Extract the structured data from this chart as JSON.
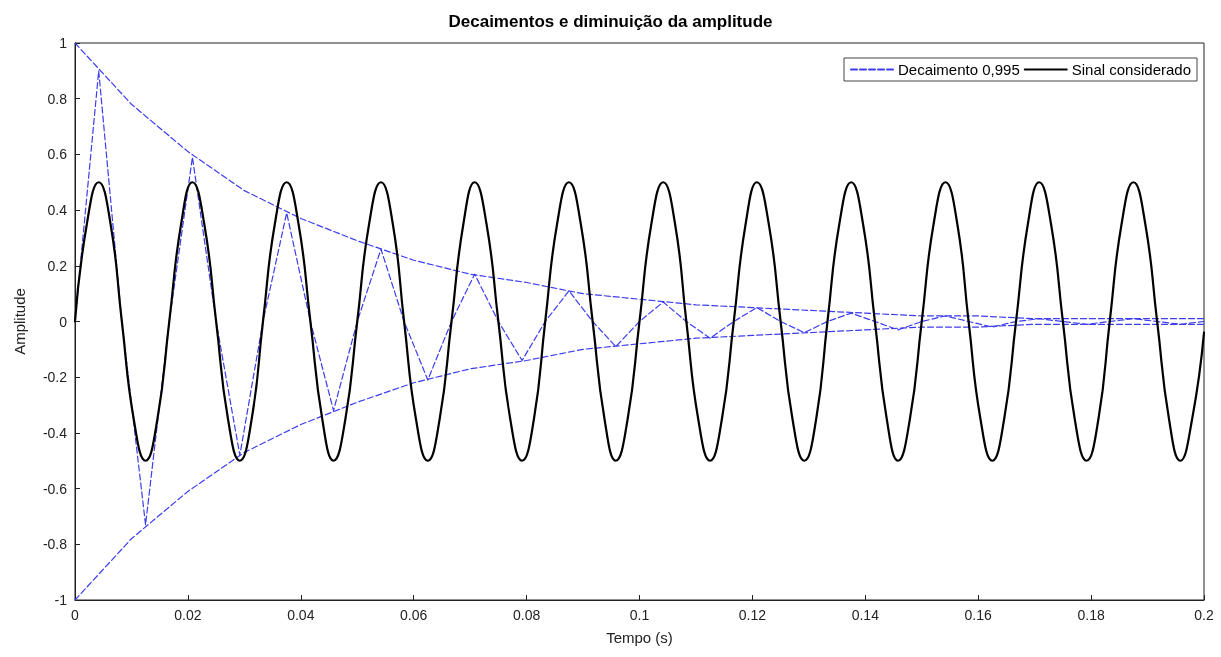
{
  "chart_data": {
    "type": "line",
    "title": "Decaimentos e diminuição da amplitude",
    "xlabel": "Tempo (s)",
    "ylabel": "Amplitude",
    "xlim": [
      0,
      0.2
    ],
    "xticks": [
      0,
      0.02,
      0.04,
      0.06,
      0.08,
      0.1,
      0.12,
      0.14,
      0.16,
      0.18,
      0.2
    ],
    "ylim": [
      -1,
      1
    ],
    "yticks": [
      -1,
      -0.8,
      -0.6,
      -0.4,
      -0.2,
      0,
      0.2,
      0.4,
      0.6,
      0.8,
      1
    ],
    "grid": false,
    "legend": "top right",
    "marker": "none",
    "series": [
      {
        "name": "Decaimento 0,995",
        "color": "#3c3cf0",
        "line_style": "dashed",
        "x": [
          0,
          0.01,
          0.02,
          0.03,
          0.04,
          0.05,
          0.06,
          0.07,
          0.08,
          0.09,
          0.1,
          0.11,
          0.12,
          0.13,
          0.14,
          0.15,
          0.16,
          0.17,
          0.18,
          0.19,
          0.2
        ],
        "values": [
          1,
          0.78,
          0.61,
          0.47,
          0.37,
          0.29,
          0.22,
          0.17,
          0.14,
          0.1,
          0.08,
          0.06,
          0.05,
          0.04,
          0.03,
          0.02,
          0.02,
          0.01,
          0.01,
          0.01,
          0.01
        ]
      },
      {
        "color": "#3c3cf0",
        "line_style": "dashed",
        "x": [
          0,
          0.01,
          0.02,
          0.03,
          0.04,
          0.05,
          0.06,
          0.07,
          0.08,
          0.09,
          0.1,
          0.11,
          0.12,
          0.13,
          0.14,
          0.15,
          0.16,
          0.17,
          0.18,
          0.19,
          0.2
        ],
        "values": [
          -1,
          -0.78,
          -0.61,
          -0.47,
          -0.37,
          -0.29,
          -0.22,
          -0.17,
          -0.14,
          -0.1,
          -0.08,
          -0.06,
          -0.05,
          -0.04,
          -0.03,
          -0.02,
          -0.02,
          -0.01,
          -0.01,
          -0.01,
          -0.01
        ]
      },
      {
        "color": "#3c3cf0",
        "line_style": "dashed",
        "x": [
          0,
          0.0042,
          0.0083,
          0.0125,
          0.0167,
          0.0208,
          0.025,
          0.0292,
          0.0333,
          0.0375,
          0.0417,
          0.0458,
          0.05,
          0.0542,
          0.0583,
          0.0625,
          0.0667,
          0.0708,
          0.075,
          0.0792,
          0.0833,
          0.0875,
          0.0917,
          0.0958,
          0.1,
          0.1042,
          0.1083,
          0.1125,
          0.1167,
          0.1208,
          0.125,
          0.1292,
          0.1333,
          0.1375,
          0.1417,
          0.1458,
          0.15,
          0.1542,
          0.1583,
          0.1625,
          0.1667,
          0.1708,
          0.175,
          0.1792,
          0.1833,
          0.1875,
          0.1917,
          0.1958,
          0.2
        ],
        "values": [
          0,
          0.9,
          0,
          -0.73,
          0,
          0.59,
          0,
          -0.48,
          0,
          0.39,
          0,
          -0.32,
          0,
          0.26,
          0,
          -0.21,
          0,
          0.17,
          0,
          -0.14,
          0,
          0.11,
          0,
          -0.09,
          0,
          0.07,
          0,
          -0.06,
          0,
          0.05,
          0,
          -0.04,
          0,
          0.03,
          0,
          -0.03,
          0,
          0.02,
          0,
          -0.02,
          0,
          0.01,
          0,
          -0.01,
          0,
          0.01,
          0,
          -0.01,
          0
        ]
      },
      {
        "name": "Sinal considerado",
        "color": "#000000",
        "line_style": "solid",
        "x": [
          0,
          0.0021,
          0.0042,
          0.0063,
          0.0083,
          0.0104,
          0.0125,
          0.0146,
          0.0167,
          0.0188,
          0.0208,
          0.0229,
          0.025,
          0.0271,
          0.0292,
          0.0313,
          0.0333,
          0.0354,
          0.0375,
          0.0396,
          0.0417,
          0.0438,
          0.0458,
          0.0479,
          0.05,
          0.0521,
          0.0542,
          0.0563,
          0.0583,
          0.0604,
          0.0625,
          0.0646,
          0.0667,
          0.0688,
          0.0708,
          0.0729,
          0.075,
          0.0771,
          0.0792,
          0.0813,
          0.0833,
          0.0854,
          0.0875,
          0.0896,
          0.0917,
          0.0938,
          0.0958,
          0.0979,
          0.1,
          0.1021,
          0.1042,
          0.1063,
          0.1083,
          0.1104,
          0.1125,
          0.1146,
          0.1167,
          0.1188,
          0.1208,
          0.1229,
          0.125,
          0.1271,
          0.1292,
          0.1313,
          0.1333,
          0.1354,
          0.1375,
          0.1396,
          0.1417,
          0.1438,
          0.1458,
          0.1479,
          0.15,
          0.1521,
          0.1542,
          0.1563,
          0.1583,
          0.1604,
          0.1625,
          0.1646,
          0.1667,
          0.1688,
          0.1708,
          0.1729,
          0.175,
          0.1771,
          0.1792,
          0.1813,
          0.1833,
          0.1854,
          0.1875,
          0.1896,
          0.1917,
          0.1938,
          0.1958,
          0.1979,
          0.2
        ],
        "values": [
          0,
          0.35,
          0.5,
          0.35,
          0,
          -0.35,
          -0.5,
          -0.35,
          0,
          0.35,
          0.5,
          0.35,
          0,
          -0.35,
          -0.5,
          -0.35,
          0,
          0.35,
          0.5,
          0.35,
          0,
          -0.35,
          -0.5,
          -0.35,
          0,
          0.35,
          0.5,
          0.35,
          0,
          -0.35,
          -0.5,
          -0.35,
          0,
          0.35,
          0.5,
          0.35,
          0,
          -0.35,
          -0.5,
          -0.35,
          0,
          0.35,
          0.5,
          0.35,
          0,
          -0.35,
          -0.5,
          -0.35,
          0,
          0.35,
          0.5,
          0.35,
          0,
          -0.35,
          -0.5,
          -0.35,
          0,
          0.35,
          0.5,
          0.35,
          0,
          -0.35,
          -0.5,
          -0.35,
          0,
          0.35,
          0.5,
          0.35,
          0,
          -0.35,
          -0.5,
          -0.35,
          0,
          0.35,
          0.5,
          0.35,
          0,
          -0.35,
          -0.5,
          -0.35,
          0,
          0.35,
          0.5,
          0.35,
          0,
          -0.35,
          -0.5,
          -0.35,
          0,
          0.35,
          0.5,
          0.35,
          0,
          -0.35,
          -0.5,
          -0.35,
          -0.04
        ]
      }
    ]
  }
}
